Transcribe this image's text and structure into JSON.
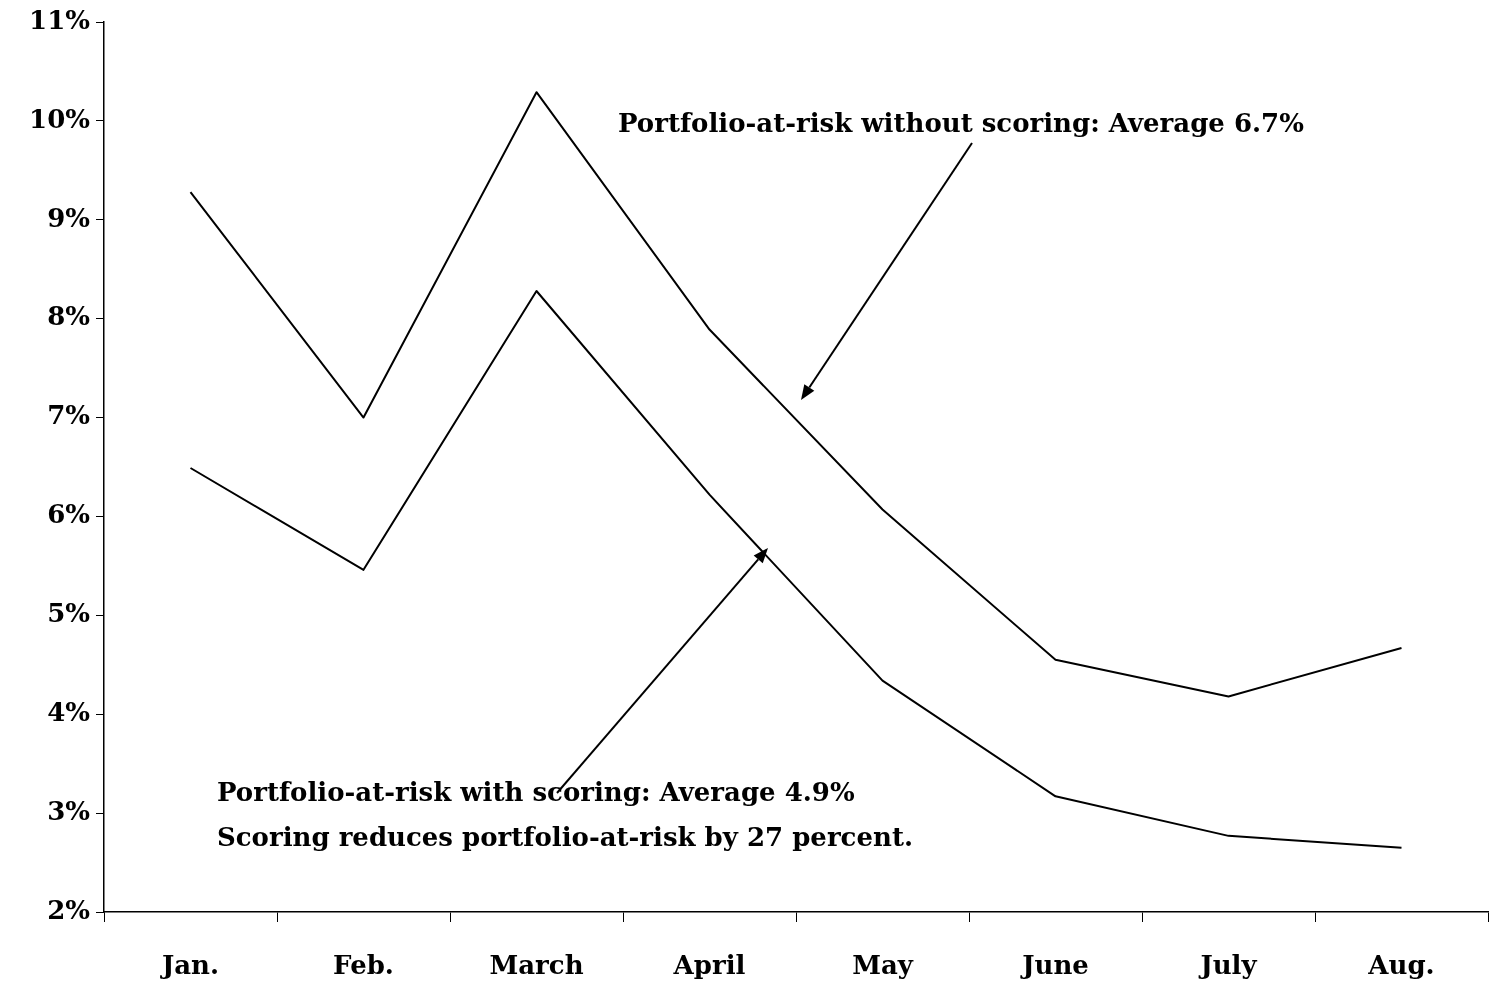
{
  "chart_data": {
    "type": "line",
    "categories": [
      "Jan.",
      "Feb.",
      "March",
      "April",
      "May",
      "June",
      "July",
      "Aug."
    ],
    "series": [
      {
        "color": "#000000",
        "values": [
          9.28,
          7.0,
          10.29,
          7.89,
          6.07,
          4.55,
          4.18,
          4.67
        ]
      },
      {
        "color": "#000000",
        "values": [
          6.49,
          5.46,
          8.28,
          6.22,
          4.34,
          3.17,
          2.77,
          2.65
        ]
      }
    ],
    "ylim": [
      2,
      11
    ],
    "yticks": [
      {
        "value": 2,
        "label": "2%"
      },
      {
        "value": 3,
        "label": "3%"
      },
      {
        "value": 4,
        "label": "4%"
      },
      {
        "value": 5,
        "label": "5%"
      },
      {
        "value": 6,
        "label": "6%"
      },
      {
        "value": 7,
        "label": "7%"
      },
      {
        "value": 8,
        "label": "8%"
      },
      {
        "value": 9,
        "label": "9%"
      },
      {
        "value": 10,
        "label": "10%"
      },
      {
        "value": 11,
        "label": "11%"
      }
    ],
    "annotations": [
      "Portfolio-at-risk without scoring: Average 6.7%",
      "Portfolio-at-risk with scoring: Average 4.9%",
      "Scoring reduces portfolio-at-risk by 27 percent."
    ]
  }
}
